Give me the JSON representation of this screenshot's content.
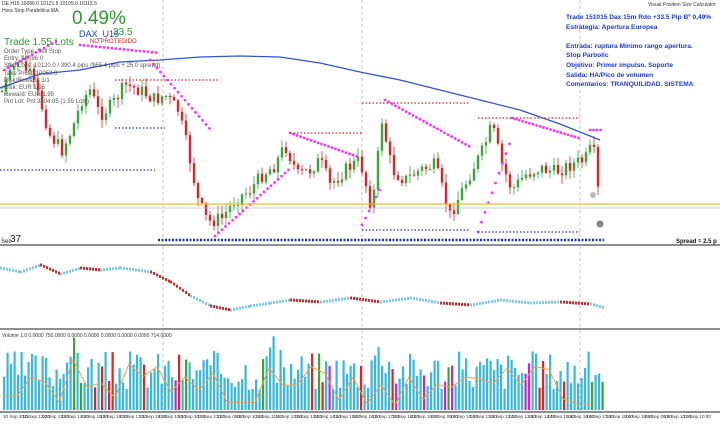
{
  "header": {
    "ohlc": "DE.H15  10086.0  10121.5  10105.0  10115.5",
    "subtitle": "Hora Stop Parabólica MA",
    "vpsc_title": "Visual Position Size Calculator"
  },
  "trade_panel": {
    "percent": "0.49%",
    "symbol": "DAX_U15",
    "pips": "33.5",
    "protected": "NO PROTEGIDO",
    "lots": "Trade 1.55 Lots",
    "info_lines": [
      "Order Type: Sell Stop",
      "Entry: 10086.0",
      "Stop Loss: 10120.0 / 390.4 pips ($65.4 pips + 25.0 spread)",
      "Take Profit: 10053.0",
      "Risk/Reward: 1/1",
      "Risk: EUR 1.95",
      "Reward: EUR 1.95",
      "Pnt Lot: Pnt 3404.85 (1.55 Lots)"
    ]
  },
  "strategy_notes": [
    "Trade 151015 Dax 15m Rdo +33.5 Pip Bº 0,49%",
    "Estrategia: Apertura Europea",
    "",
    "Entrada: ruptura Mínimo rango apertura.",
    "Stop Parbolic",
    "Objetivo: Primer impulso. Soporte",
    "Salida: HA/Pico de volumen",
    "Comentarios: TRANQUILIDAD. SISTEMA"
  ],
  "bottom_labels": {
    "sec_label": "Sec",
    "sec_value": "37",
    "spread": "Spread = 2.5 p"
  },
  "volume_header": "Volume 1.0  0.0000  750.0000  0.0000  0.0000  0.0000  0.0000  0.0000  714.0000",
  "time_labels": [
    "10 Sep 2015",
    "10 Sep 12:30",
    "10 Sep 13:30",
    "10 Sep 14:30",
    "10 Sep 15:30",
    "10 Sep 16:30",
    "10 Sep 17:30",
    "10 Sep 18:30",
    "10 Sep 19:30",
    "10 Sep 20:30",
    "10 Sep 21:30",
    "11 Sep 09:00",
    "11 Sep 10:00",
    "11 Sep 11:00",
    "11 Sep 12:00",
    "11 Sep 13:00",
    "11 Sep 14:00",
    "11 Sep 15:00",
    "11 Sep 16:00",
    "11 Sep 17:00",
    "11 Sep 18:00",
    "11 Sep 19:00",
    "14 Sep 09:00",
    "14 Sep 10:00",
    "14 Sep 11:00",
    "14 Sep 12:00",
    "14 Sep 13:00",
    "14 Sep 14:00",
    "14 Sep 15:00",
    "14 Sep 16:00",
    "14 Sep 17:00",
    "14 Sep 18:00",
    "14 Sep 19:00",
    "15 Sep 09:00",
    "15 Sep 10:00",
    "15 Sep 10:00"
  ],
  "colors": {
    "bull": "#3aa53a",
    "bear": "#e02424",
    "sar": "#ff33ff",
    "ma": "#3355cc",
    "levels_red": "#e02424",
    "levels_blue": "#2233bb",
    "yellow_line": "#e8c020",
    "volume_blue": "#35b7e8",
    "volume_orange": "#f0a040"
  }
}
